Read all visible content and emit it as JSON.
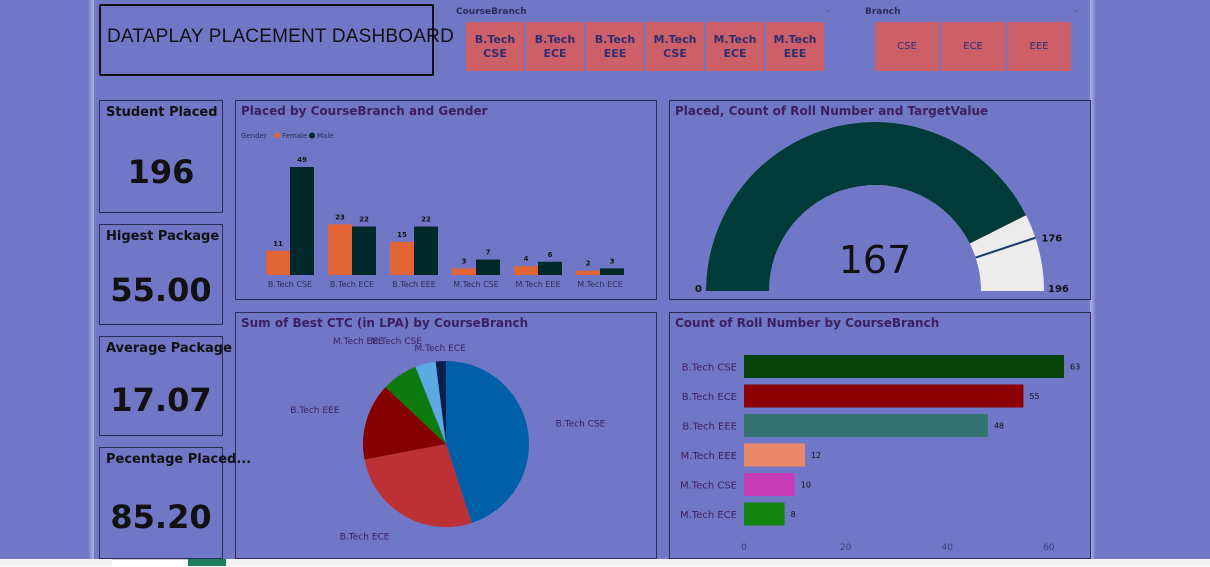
{
  "header": {
    "title": "DATAPLAY PLACEMENT DASHBOARD"
  },
  "slicers": {
    "coursebranch": {
      "label": "CourseBranch",
      "options": [
        "B.Tech CSE",
        "B.Tech ECE",
        "B.Tech EEE",
        "M.Tech CSE",
        "M.Tech ECE",
        "M.Tech EEE"
      ]
    },
    "branch": {
      "label": "Branch",
      "options": [
        "CSE",
        "ECE",
        "EEE"
      ]
    }
  },
  "kpis": [
    {
      "title": "Student Placed",
      "value": "196"
    },
    {
      "title": "Higest Package",
      "value": "55.00"
    },
    {
      "title": "Average Package",
      "value": "17.07"
    },
    {
      "title": "Pecentage Placed...",
      "value": "85.20"
    }
  ],
  "chart_data": [
    {
      "type": "bar",
      "title": "Placed by CourseBranch and Gender",
      "legend_title": "Gender",
      "categories": [
        "B.Tech CSE",
        "B.Tech ECE",
        "B.Tech EEE",
        "M.Tech CSE",
        "M.Tech EEE",
        "M.Tech ECE"
      ],
      "series": [
        {
          "name": "Female",
          "values": [
            11,
            23,
            15,
            3,
            4,
            2
          ],
          "color": "#e06435"
        },
        {
          "name": "Male",
          "values": [
            49,
            22,
            22,
            7,
            6,
            3
          ],
          "color": "#00282a"
        }
      ]
    },
    {
      "type": "gauge",
      "title": "Placed, Count of Roll Number and TargetValue",
      "value": 167,
      "min": 0,
      "max": 196,
      "target": 176,
      "min_label": "0",
      "max_label": "196",
      "target_label": "176",
      "value_label": "167",
      "fill_color": "#003b3a",
      "track_color": "#ececec"
    },
    {
      "type": "pie",
      "title": "Sum of Best CTC (in LPA) by CourseBranch",
      "slices": [
        {
          "label": "B.Tech CSE",
          "value": 45,
          "color": "#005fa6"
        },
        {
          "label": "B.Tech ECE",
          "value": 27,
          "color": "#bd3034"
        },
        {
          "label": "B.Tech EEE",
          "value": 15,
          "color": "#870000"
        },
        {
          "label": "M.Tech EEE",
          "value": 7,
          "color": "#0c7a0c"
        },
        {
          "label": "M.Tech CSE",
          "value": 4,
          "color": "#5ca9e6"
        },
        {
          "label": "M.Tech ECE",
          "value": 2,
          "color": "#0a1f4c"
        }
      ]
    },
    {
      "type": "bar",
      "orientation": "horizontal",
      "title": "Count of Roll Number by CourseBranch",
      "categories": [
        "B.Tech CSE",
        "B.Tech ECE",
        "B.Tech EEE",
        "M.Tech EEE",
        "M.Tech CSE",
        "M.Tech ECE"
      ],
      "values": [
        63,
        55,
        48,
        12,
        10,
        8
      ],
      "colors": [
        "#054208",
        "#8b0000",
        "#367472",
        "#e9896a",
        "#c53cb6",
        "#118410"
      ],
      "xticks": [
        0,
        20,
        40,
        60
      ]
    }
  ]
}
